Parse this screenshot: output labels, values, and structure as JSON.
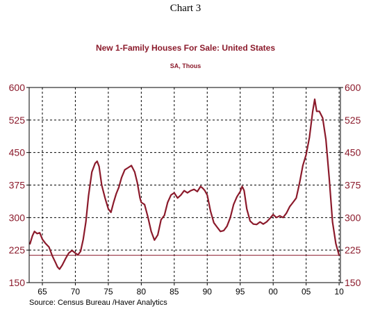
{
  "page": {
    "label": "Chart 3"
  },
  "chart_data": {
    "type": "line",
    "title": "New 1-Family Houses For Sale: United States",
    "subtitle": "SA, Thous",
    "source": "Source:  Census Bureau /Haver Analytics",
    "xlabel": "",
    "ylabel": "",
    "xlim": [
      1963,
      2010.2
    ],
    "ylim": [
      150,
      600
    ],
    "y_ticks": [
      150,
      225,
      300,
      375,
      450,
      525,
      600
    ],
    "y_tick_labels": [
      "150",
      "225",
      "300",
      "375",
      "450",
      "525",
      "600"
    ],
    "x_gridlines": [
      1965,
      1970,
      1975,
      1980,
      1985,
      1990,
      1995,
      2000,
      2005,
      2010
    ],
    "x_ticks": [
      1965,
      1970,
      1975,
      1980,
      1985,
      1990,
      1995,
      2000,
      2005,
      2010
    ],
    "x_tick_labels": [
      "65",
      "70",
      "75",
      "80",
      "85",
      "90",
      "95",
      "00",
      "05",
      "10"
    ],
    "grid": true,
    "reference_line": 213,
    "colors": {
      "line": "#8b1a2b",
      "grid": "#000000",
      "axis_text": "#8b1a2b"
    },
    "series": [
      {
        "x": [
          1963.1,
          1963.5,
          1963.8,
          1964.2,
          1964.6,
          1965.0,
          1965.5,
          1966.0,
          1966.5,
          1967.0,
          1967.3,
          1967.6,
          1968.0,
          1968.5,
          1969.0,
          1969.5,
          1970.0,
          1970.4,
          1970.8,
          1971.2,
          1971.6,
          1972.0,
          1972.5,
          1973.0,
          1973.3,
          1973.6,
          1974.0,
          1974.5,
          1975.0,
          1975.4,
          1975.8,
          1976.2,
          1976.6,
          1977.0,
          1977.5,
          1978.0,
          1978.5,
          1979.0,
          1979.4,
          1979.8,
          1980.0,
          1980.5,
          1981.0,
          1981.5,
          1982.0,
          1982.5,
          1983.0,
          1983.5,
          1984.0,
          1984.5,
          1985.0,
          1985.5,
          1986.0,
          1986.5,
          1987.0,
          1987.5,
          1988.0,
          1988.5,
          1989.0,
          1989.3,
          1989.6,
          1990.0,
          1990.5,
          1991.0,
          1991.5,
          1992.0,
          1992.5,
          1993.0,
          1993.5,
          1994.0,
          1994.5,
          1995.0,
          1995.3,
          1995.6,
          1996.0,
          1996.5,
          1997.0,
          1997.5,
          1998.0,
          1998.5,
          1999.0,
          1999.5,
          2000.0,
          2000.5,
          2001.0,
          2001.5,
          2002.0,
          2002.5,
          2003.0,
          2003.5,
          2004.0,
          2004.5,
          2005.0,
          2005.5,
          2006.0,
          2006.3,
          2006.6,
          2007.0,
          2007.5,
          2008.0,
          2008.5,
          2009.0,
          2009.5,
          2010.0
        ],
        "values": [
          238,
          258,
          268,
          263,
          265,
          250,
          240,
          232,
          212,
          196,
          186,
          181,
          190,
          205,
          218,
          224,
          218,
          214,
          222,
          250,
          290,
          350,
          405,
          425,
          430,
          418,
          375,
          345,
          320,
          312,
          335,
          355,
          370,
          392,
          410,
          415,
          420,
          405,
          380,
          345,
          335,
          330,
          302,
          268,
          248,
          260,
          295,
          305,
          335,
          352,
          357,
          345,
          352,
          362,
          357,
          362,
          365,
          360,
          372,
          368,
          363,
          352,
          315,
          288,
          278,
          268,
          270,
          280,
          300,
          330,
          348,
          360,
          372,
          362,
          320,
          292,
          285,
          284,
          290,
          285,
          290,
          298,
          307,
          300,
          304,
          300,
          310,
          325,
          335,
          345,
          380,
          420,
          445,
          485,
          545,
          573,
          545,
          545,
          530,
          480,
          390,
          290,
          240,
          213
        ]
      }
    ]
  }
}
